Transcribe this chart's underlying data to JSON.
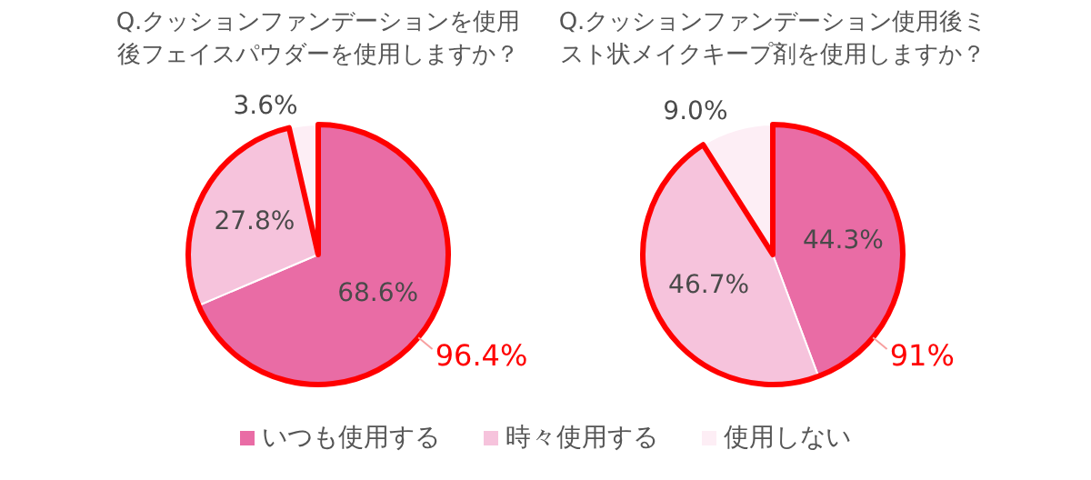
{
  "chart_data": [
    {
      "type": "pie",
      "title": "Q.クッションファンデーションを使用後フェイスパウダーを使用しますか？",
      "categories": [
        "いつも使用する",
        "時々使用する",
        "使用しない"
      ],
      "values": [
        68.6,
        27.8,
        3.6
      ],
      "value_labels": [
        "68.6%",
        "27.8%",
        "3.6%"
      ],
      "colors": [
        "#e96ca5",
        "#f6c3dc",
        "#fdeef5"
      ],
      "annotations": [
        "96.4%"
      ],
      "legend": "bottom"
    },
    {
      "type": "pie",
      "title": "Q.クッションファンデーション使用後ミスト状メイクキープ剤を使用しますか？",
      "categories": [
        null,
        null,
        null
      ],
      "values": [
        44.3,
        46.7,
        9.0
      ],
      "value_labels": [
        "44.3%",
        "46.7%",
        "9.0%"
      ],
      "colors": [
        "#e96ca5",
        "#f6c3dc",
        "#fdeef5"
      ],
      "annotations": [
        "91%"
      ]
    }
  ]
}
